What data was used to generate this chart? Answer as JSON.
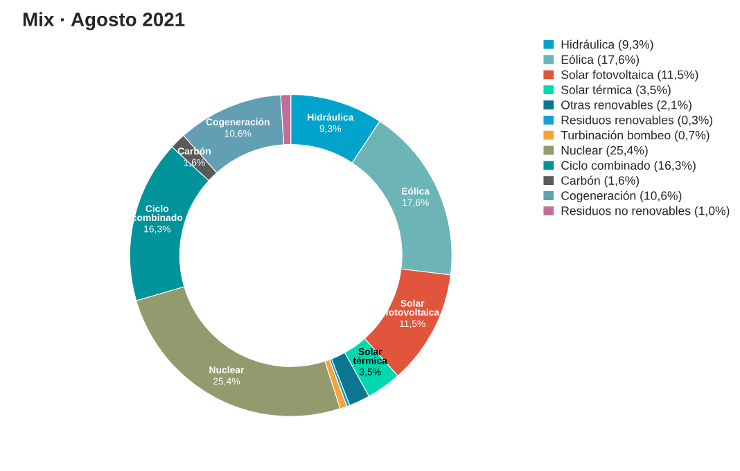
{
  "chart_data": {
    "type": "donut",
    "title": "Mix · Agosto 2021",
    "categories": [
      "Hidráulica",
      "Eólica",
      "Solar fotovoltaica",
      "Solar térmica",
      "Otras renovables",
      "Residuos renovables",
      "Turbinación bombeo",
      "Nuclear",
      "Ciclo combinado",
      "Carbón",
      "Cogeneración",
      "Residuos no renovables"
    ],
    "values": [
      9.3,
      17.6,
      11.5,
      3.5,
      2.1,
      0.3,
      0.7,
      25.4,
      16.3,
      1.6,
      10.6,
      1.0
    ],
    "colors": [
      "#00a3cc",
      "#6cb4b6",
      "#e2553d",
      "#00d9b0",
      "#0b7690",
      "#1a9fd6",
      "#f8a33a",
      "#959a6e",
      "#00939a",
      "#5a5a5a",
      "#639fb2",
      "#c06f98"
    ],
    "value_labels": [
      "(9,3%)",
      "(17,6%)",
      "(11,5%)",
      "(3,5%)",
      "(2,1%)",
      "(0,3%)",
      "(0,7%)",
      "(25,4%)",
      "(16,3%)",
      "(1,6%)",
      "(10,6%)",
      "(1,0%)"
    ],
    "annotations": [
      {
        "text": "9,3%",
        "x": "Hidráulica"
      },
      {
        "text": "17,6%",
        "x": "Eólica"
      },
      {
        "text": "11,5%",
        "x": "Solar fotovoltaica"
      },
      {
        "text": "3,5%",
        "x": "Solar térmica"
      },
      {
        "text": "25,4%",
        "x": "Nuclear"
      },
      {
        "text": "16,3%",
        "x": "Ciclo combinado"
      },
      {
        "text": "1,6%",
        "x": "Carbón"
      },
      {
        "text": "10,6%",
        "x": "Cogeneración"
      }
    ],
    "legend": "top right"
  }
}
